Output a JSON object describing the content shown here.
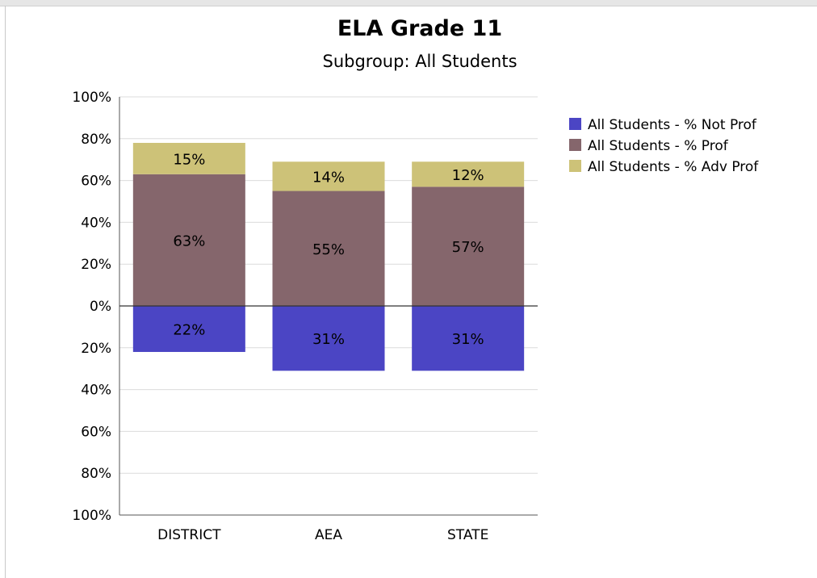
{
  "chart_data": {
    "type": "bar",
    "stacked": true,
    "diverging": true,
    "title": "ELA Grade 11",
    "subtitle": "Subgroup: All Students",
    "categories": [
      "DISTRICT",
      "AEA",
      "STATE"
    ],
    "y_tick_labels": [
      "100%",
      "80%",
      "60%",
      "40%",
      "20%",
      "0%",
      "20%",
      "40%",
      "60%",
      "80%",
      "100%"
    ],
    "ylim": [
      -100,
      100
    ],
    "grid": true,
    "legend_position": "right",
    "series": [
      {
        "name": "All Students - % Not Prof",
        "color": "#4b45c4",
        "values": [
          -22,
          -31,
          -31
        ],
        "labels": [
          "22%",
          "31%",
          "31%"
        ]
      },
      {
        "name": "All Students - % Prof",
        "color": "#85666c",
        "values": [
          63,
          55,
          57
        ],
        "labels": [
          "63%",
          "55%",
          "57%"
        ]
      },
      {
        "name": "All Students - % Adv Prof",
        "color": "#cdc278",
        "values": [
          15,
          14,
          12
        ],
        "labels": [
          "15%",
          "14%",
          "12%"
        ]
      }
    ]
  }
}
